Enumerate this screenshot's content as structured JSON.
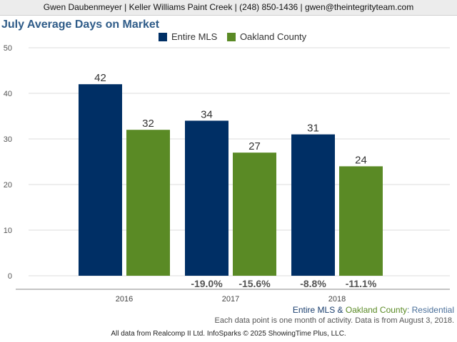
{
  "header": {
    "contact": "Gwen Daubenmeyer | Keller Williams Paint Creek | (248) 850-1436 | gwen@theintegrityteam.com"
  },
  "colors": {
    "entire_mls": "#002f65",
    "oakland_county": "#5a8a25",
    "title": "#2e5b88"
  },
  "chart_data": {
    "type": "bar",
    "title": "July Average Days on Market",
    "categories": [
      "2016",
      "2017",
      "2018"
    ],
    "series": [
      {
        "name": "Entire MLS",
        "values": [
          42,
          34,
          31
        ],
        "changes": [
          "",
          "-19.0%",
          "-8.8%"
        ]
      },
      {
        "name": "Oakland County",
        "values": [
          32,
          27,
          24
        ],
        "changes": [
          "",
          "-15.6%",
          "-11.1%"
        ]
      }
    ],
    "yticks": [
      0,
      10,
      20,
      30,
      40,
      50
    ],
    "ylim": [
      0,
      50
    ],
    "grid": true,
    "legend": "top-center"
  },
  "footer": {
    "series_part1": "Entire MLS",
    "series_sep": " & ",
    "series_part2": "Oakland County",
    "series_part3": ": Residential",
    "note": "Each data point is one month of activity. Data is from August 3, 2018.",
    "source": "All data from Realcomp II Ltd. InfoSparks © 2025 ShowingTime Plus, LLC."
  }
}
